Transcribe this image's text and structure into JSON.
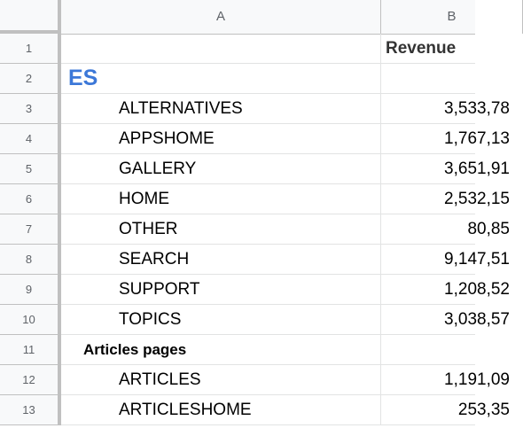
{
  "columns": {
    "a": "A",
    "b": "B"
  },
  "header_row": {
    "num": "1",
    "a": "",
    "b": "Revenue"
  },
  "rows": [
    {
      "num": "2",
      "a": "ES",
      "b": "",
      "style": "section"
    },
    {
      "num": "3",
      "a": "ALTERNATIVES",
      "b": "3,533,78",
      "style": "item"
    },
    {
      "num": "4",
      "a": "APPSHOME",
      "b": "1,767,13",
      "style": "item"
    },
    {
      "num": "5",
      "a": "GALLERY",
      "b": "3,651,91",
      "style": "item"
    },
    {
      "num": "6",
      "a": "HOME",
      "b": "2,532,15",
      "style": "item"
    },
    {
      "num": "7",
      "a": "OTHER",
      "b": "80,85",
      "style": "item"
    },
    {
      "num": "8",
      "a": "SEARCH",
      "b": "9,147,51",
      "style": "item"
    },
    {
      "num": "9",
      "a": "SUPPORT",
      "b": "1,208,52",
      "style": "item"
    },
    {
      "num": "10",
      "a": "TOPICS",
      "b": "3,038,57",
      "style": "item"
    },
    {
      "num": "11",
      "a": "Articles pages",
      "b": "",
      "style": "subsection"
    },
    {
      "num": "12",
      "a": "ARTICLES",
      "b": "1,191,09",
      "style": "item"
    },
    {
      "num": "13",
      "a": "ARTICLESHOME",
      "b": "253,35",
      "style": "item"
    }
  ]
}
